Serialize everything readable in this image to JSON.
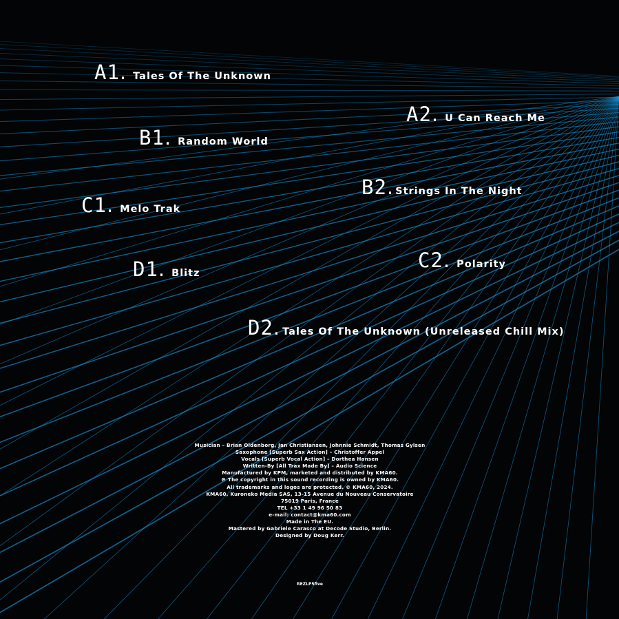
{
  "tracks": [
    {
      "code": "A1",
      "title": "Tales Of The Unknown"
    },
    {
      "code": "A2",
      "title": "U Can Reach Me"
    },
    {
      "code": "B1",
      "title": "Random World"
    },
    {
      "code": "B2",
      "title": "Strings In The Night"
    },
    {
      "code": "C1",
      "title": "Melo Trak"
    },
    {
      "code": "C2",
      "title": "Polarity"
    },
    {
      "code": "D1",
      "title": "Blitz"
    },
    {
      "code": "D2",
      "title": "Tales Of The Unknown (Unreleased Chill Mix)"
    }
  ],
  "credits": [
    "Musician – Brian Oldenborg, Jan Christiansen, Johnnie Schmidt, Thomas Gylsen",
    "Saxophone [Superb Sax Action] – Christoffer Appel",
    "Vocals [Superb Vocal Action] – Dorthea Hansen",
    "Written-By [All Trax Made By] – Audio Science",
    "Manufactured by KPM, marketed and distributed by KMA60.",
    "℗ The copyright in this sound recording is owned by KMA60.",
    "All trademarks and logos are protected. © KMA60, 2024.",
    "KMA60, Kuroneko Media SAS, 13-15 Avenue du Nouveau Conservatoire",
    "75019 Paris, France",
    "TEL +33 1 49 96 50 83",
    "e-mail: contact@kma60.com",
    "Made in The EU.",
    "Mastered by Gabriele Carasco at Decode Studio, Berlin.",
    "Designed by Doug Kerr."
  ],
  "catalog": "REZLP5five",
  "colors": {
    "background": "#020406",
    "grid": "#1a8fd0",
    "text": "#ffffff"
  }
}
